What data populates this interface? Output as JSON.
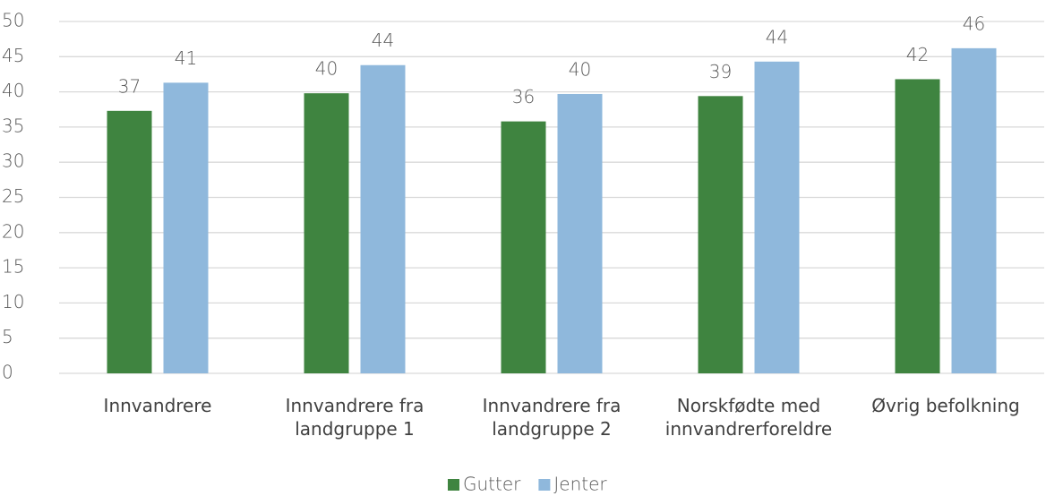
{
  "chart_data": {
    "type": "bar",
    "categories": [
      "Innvandrere",
      "Innvandrere fra landgruppe 1",
      "Innvandrere fra landgruppe 2",
      "Norskfødte med innvandrerforeldre",
      "Øvrig befolkning"
    ],
    "series": [
      {
        "name": "Gutter",
        "color": "#3f8440",
        "values": [
          37.3,
          39.8,
          35.8,
          39.4,
          41.8
        ],
        "value_labels": [
          "37",
          "40",
          "36",
          "39",
          "42"
        ]
      },
      {
        "name": "Jenter",
        "color": "#8fb8dc",
        "values": [
          41.3,
          43.8,
          39.7,
          44.3,
          46.2
        ],
        "value_labels": [
          "41",
          "44",
          "40",
          "44",
          "46"
        ]
      }
    ],
    "ylim": [
      0,
      50
    ],
    "yticks": [
      0,
      5,
      10,
      15,
      20,
      25,
      30,
      35,
      40,
      45,
      50
    ],
    "grid": true,
    "legend": "bottom"
  }
}
